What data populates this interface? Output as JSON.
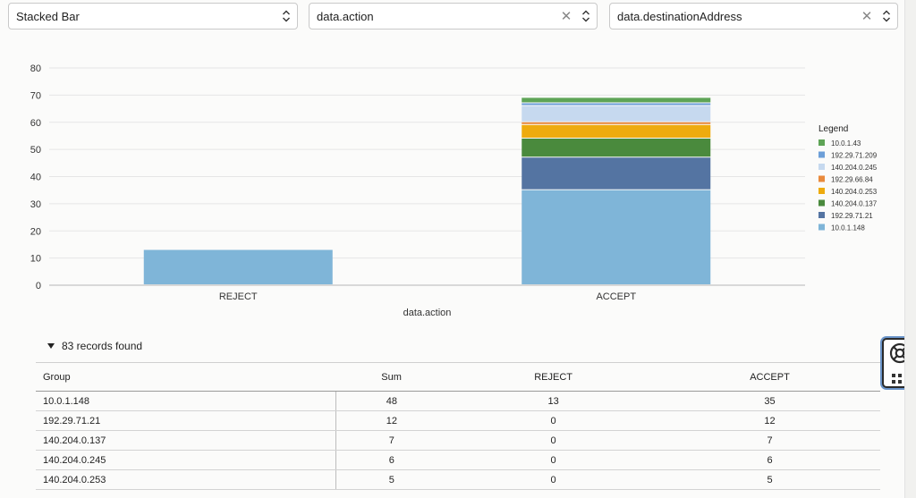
{
  "controls": {
    "chart_type": "Stacked Bar",
    "group_field": "data.action",
    "series_field": "data.destinationAddress"
  },
  "chart_data": {
    "type": "bar",
    "stacked": true,
    "categories": [
      "REJECT",
      "ACCEPT"
    ],
    "xlabel": "data.action",
    "ylabel": "",
    "ylim": [
      0,
      80
    ],
    "yticks": [
      0,
      10,
      20,
      30,
      40,
      50,
      60,
      70,
      80
    ],
    "grid": true,
    "legend_title": "Legend",
    "legend_position": "right",
    "series": [
      {
        "name": "10.0.1.148",
        "color": "#7fb5d8",
        "values": [
          13,
          35
        ]
      },
      {
        "name": "192.29.71.21",
        "color": "#5474a2",
        "values": [
          0,
          12
        ]
      },
      {
        "name": "140.204.0.137",
        "color": "#4a8a3d",
        "values": [
          0,
          7
        ]
      },
      {
        "name": "140.204.0.253",
        "color": "#eeab0e",
        "values": [
          0,
          5
        ]
      },
      {
        "name": "192.29.66.84",
        "color": "#e98a3c",
        "values": [
          0,
          1
        ]
      },
      {
        "name": "140.204.0.245",
        "color": "#c6d9ef",
        "values": [
          0,
          6
        ]
      },
      {
        "name": "192.29.71.209",
        "color": "#6d9fd8",
        "values": [
          0,
          1
        ]
      },
      {
        "name": "10.0.1.43",
        "color": "#5ea456",
        "values": [
          0,
          2
        ]
      }
    ]
  },
  "records_label": "83 records found",
  "table": {
    "headers": [
      "Group",
      "Sum",
      "REJECT",
      "ACCEPT"
    ],
    "rows": [
      [
        "10.0.1.148",
        "48",
        "13",
        "35"
      ],
      [
        "192.29.71.21",
        "12",
        "0",
        "12"
      ],
      [
        "140.204.0.137",
        "7",
        "0",
        "7"
      ],
      [
        "140.204.0.245",
        "6",
        "0",
        "6"
      ],
      [
        "140.204.0.253",
        "5",
        "0",
        "5"
      ]
    ]
  },
  "icons": {
    "help": "lifebuoy-icon",
    "apps": "grid-icon"
  }
}
